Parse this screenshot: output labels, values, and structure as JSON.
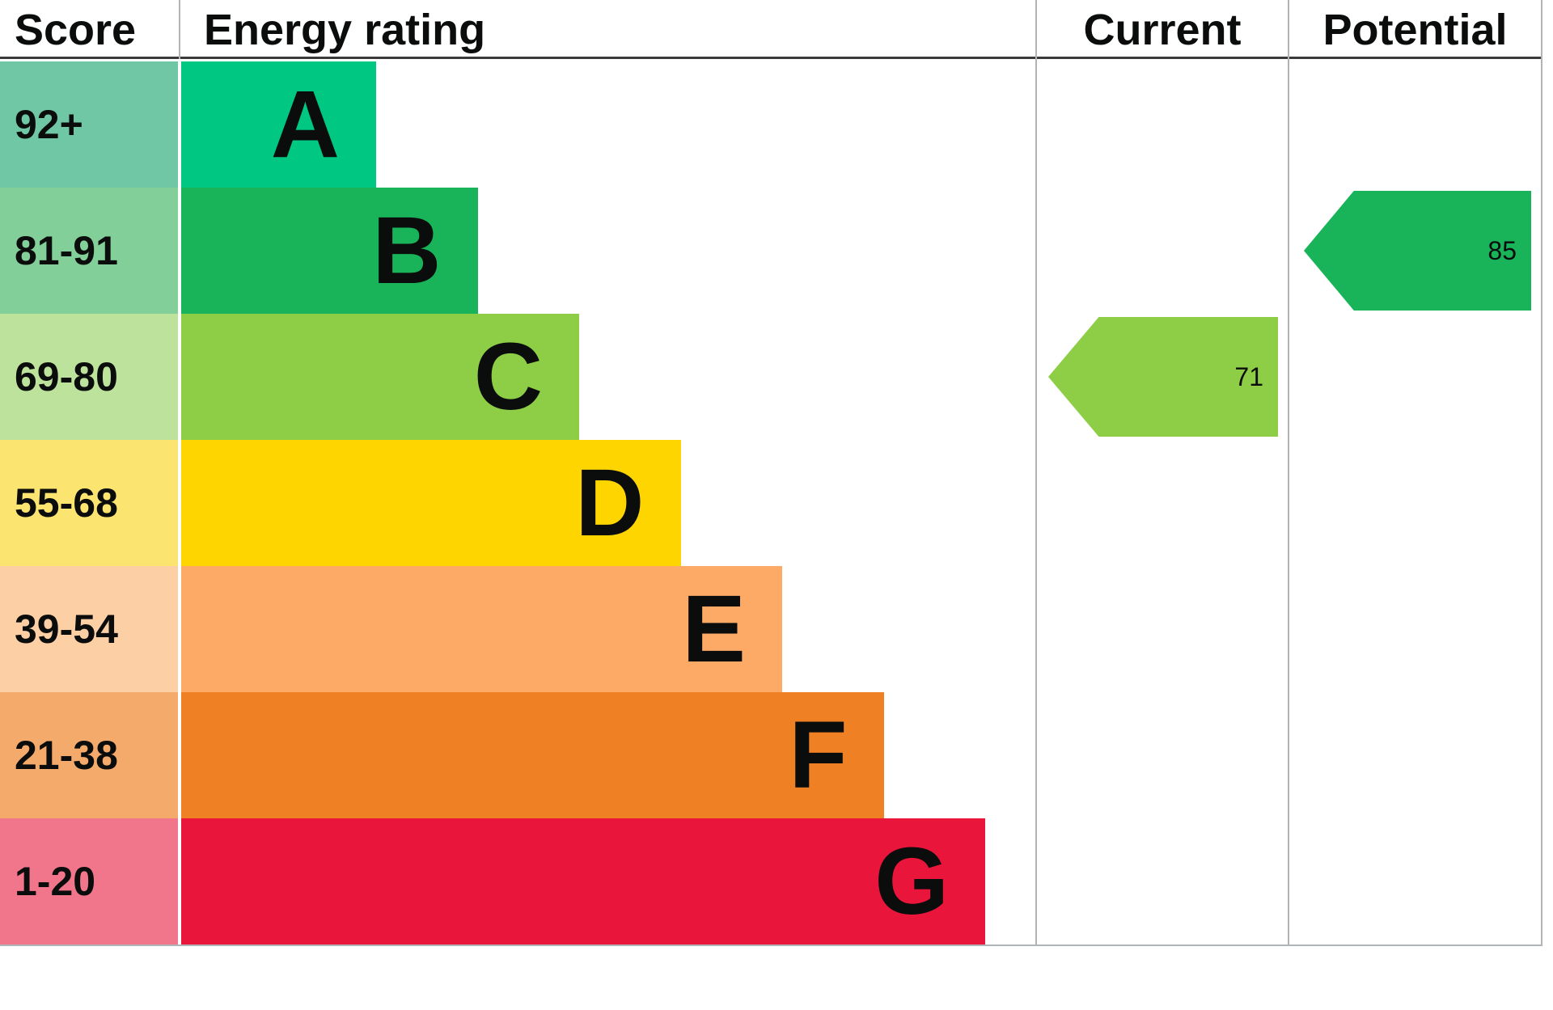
{
  "chart_data": {
    "type": "bar",
    "orientation": "horizontal",
    "columns": {
      "score": "Score",
      "rating": "Energy rating",
      "current": "Current",
      "potential": "Potential"
    },
    "bands": [
      {
        "letter": "A",
        "score": "92+",
        "bar_color": "#00c781",
        "score_color": "#6fc7a5"
      },
      {
        "letter": "B",
        "score": "81-91",
        "bar_color": "#19b459",
        "score_color": "#82cf9a"
      },
      {
        "letter": "C",
        "score": "69-80",
        "bar_color": "#8dce46",
        "score_color": "#bce29b"
      },
      {
        "letter": "D",
        "score": "55-68",
        "bar_color": "#ffd500",
        "score_color": "#fbe46f"
      },
      {
        "letter": "E",
        "score": "39-54",
        "bar_color": "#fcaa65",
        "score_color": "#fdcfa4"
      },
      {
        "letter": "F",
        "score": "21-38",
        "bar_color": "#ef8023",
        "score_color": "#f4aa6b"
      },
      {
        "letter": "G",
        "score": "1-20",
        "bar_color": "#e9153b",
        "score_color": "#f1758b"
      }
    ],
    "current": {
      "value": 71,
      "band": "C",
      "color": "#8dce46"
    },
    "potential": {
      "value": 85,
      "band": "B",
      "color": "#19b459"
    }
  }
}
